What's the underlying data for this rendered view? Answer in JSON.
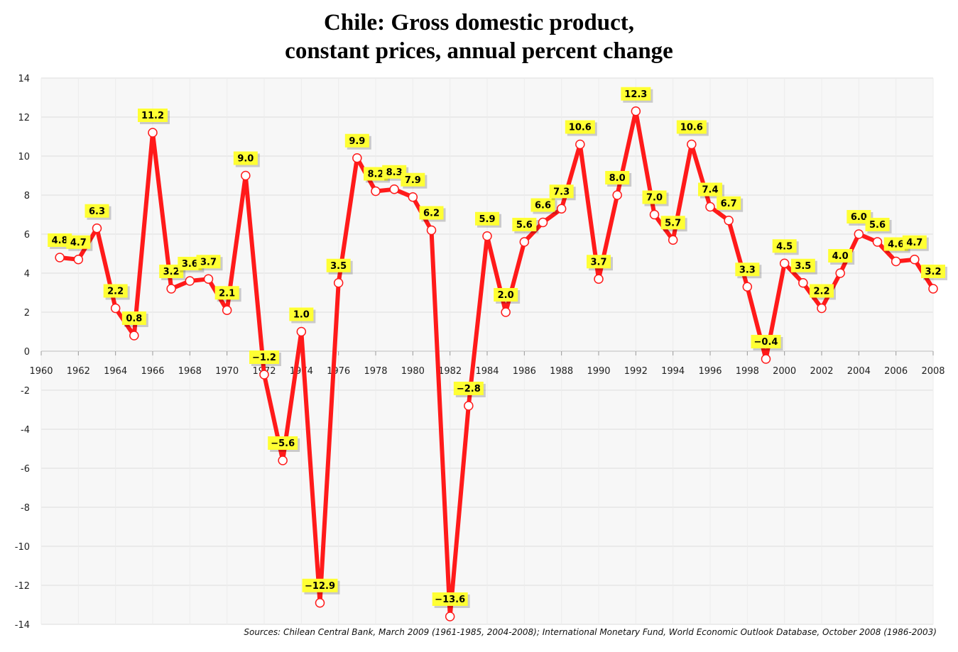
{
  "title_line1": "Chile: Gross domestic product,",
  "title_line2": "constant prices, annual percent change",
  "source": "Sources: Chilean Central Bank, March 2009 (1961-1985, 2004-2008); International Monetary Fund, World Economic Outlook Database, October 2008 (1986-2003)",
  "colors": {
    "line": "#ff1a1a",
    "label_bg": "#ffff33",
    "grid": "#dddddd",
    "plot_bg": "#f7f7f7",
    "marker_fill": "#ffffff"
  },
  "chart_data": {
    "type": "line",
    "title": "Chile: Gross domestic product, constant prices, annual percent change",
    "xlim": [
      1960,
      2008
    ],
    "ylim": [
      -14,
      14
    ],
    "x_ticks": [
      "1960",
      "1962",
      "1964",
      "1966",
      "1968",
      "1970",
      "1972",
      "1974",
      "1976",
      "1978",
      "1980",
      "1982",
      "1984",
      "1986",
      "1988",
      "1990",
      "1992",
      "1994",
      "1996",
      "1998",
      "2000",
      "2002",
      "2004",
      "2006",
      "2008"
    ],
    "y_ticks": [
      "14",
      "12",
      "10",
      "8",
      "6",
      "4",
      "2",
      "0",
      "-2",
      "-4",
      "-6",
      "-8",
      "-10",
      "-12",
      "-14"
    ],
    "grid": true,
    "series": [
      {
        "x": [
          1961,
          1962,
          1963,
          1964,
          1965,
          1966,
          1967,
          1968,
          1969,
          1970,
          1971,
          1972,
          1973,
          1974,
          1975,
          1976,
          1977,
          1978,
          1979,
          1980,
          1981,
          1982,
          1983,
          1984,
          1985,
          1986,
          1987,
          1988,
          1989,
          1990,
          1991,
          1992,
          1993,
          1994,
          1995,
          1996,
          1997,
          1998,
          1999,
          2000,
          2001,
          2002,
          2003,
          2004,
          2005,
          2006,
          2007,
          2008
        ],
        "values": [
          4.8,
          4.7,
          6.3,
          2.2,
          0.8,
          11.2,
          3.2,
          3.6,
          3.7,
          2.1,
          9.0,
          -1.2,
          -5.6,
          1.0,
          -12.9,
          3.5,
          9.9,
          8.2,
          8.3,
          7.9,
          6.2,
          -13.6,
          -2.8,
          5.9,
          2.0,
          5.6,
          6.6,
          7.3,
          10.6,
          3.7,
          8.0,
          12.3,
          7.0,
          5.7,
          10.6,
          7.4,
          6.7,
          3.3,
          -0.4,
          4.5,
          3.5,
          2.2,
          4.0,
          6.0,
          5.6,
          4.6,
          4.7,
          3.2
        ],
        "labels": [
          "4.8",
          "4.7",
          "6.3",
          "2.2",
          "0.8",
          "11.2",
          "3.2",
          "3.6",
          "3.7",
          "2.1",
          "9.0",
          "−1.2",
          "−5.6",
          "1.0",
          "−12.9",
          "3.5",
          "9.9",
          "8.2",
          "8.3",
          "7.9",
          "6.2",
          "−13.6",
          "−2.8",
          "5.9",
          "2.0",
          "5.6",
          "6.6",
          "7.3",
          "10.6",
          "3.7",
          "8.0",
          "12.3",
          "7.0",
          "5.7",
          "10.6",
          "7.4",
          "6.7",
          "3.3",
          "−0.4",
          "4.5",
          "3.5",
          "2.2",
          "4.0",
          "6.0",
          "5.6",
          "4.6",
          "4.7",
          "3.2"
        ]
      }
    ]
  }
}
